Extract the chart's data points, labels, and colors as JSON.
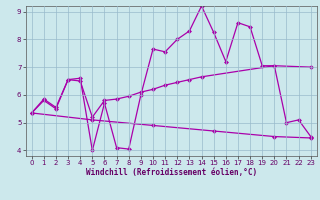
{
  "xlabel": "Windchill (Refroidissement éolien,°C)",
  "background_color": "#cce8ec",
  "line_color": "#aa00aa",
  "grid_color": "#99bbcc",
  "xlim": [
    -0.5,
    23.5
  ],
  "ylim": [
    3.8,
    9.2
  ],
  "yticks": [
    4,
    5,
    6,
    7,
    8,
    9
  ],
  "xticks": [
    0,
    1,
    2,
    3,
    4,
    5,
    6,
    7,
    8,
    9,
    10,
    11,
    12,
    13,
    14,
    15,
    16,
    17,
    18,
    19,
    20,
    21,
    22,
    23
  ],
  "line1_x": [
    0,
    1,
    2,
    3,
    4,
    5,
    6,
    7,
    8,
    9,
    10,
    11,
    12,
    13,
    14,
    15,
    16,
    17,
    18,
    19,
    20,
    21,
    22,
    23
  ],
  "line1_y": [
    5.35,
    5.8,
    5.5,
    6.55,
    6.6,
    4.0,
    5.7,
    4.1,
    4.05,
    6.0,
    7.65,
    7.55,
    8.0,
    8.3,
    9.2,
    8.25,
    7.2,
    8.6,
    8.45,
    7.05,
    7.05,
    5.0,
    5.1,
    4.5
  ],
  "line2_x": [
    0,
    1,
    2,
    3,
    4,
    5,
    6,
    7,
    8,
    9,
    10,
    11,
    12,
    13,
    14,
    20,
    23
  ],
  "line2_y": [
    5.35,
    5.85,
    5.55,
    6.55,
    6.5,
    5.2,
    5.8,
    5.85,
    5.95,
    6.1,
    6.2,
    6.35,
    6.45,
    6.55,
    6.65,
    7.05,
    7.0
  ],
  "line3_x": [
    0,
    5,
    10,
    15,
    20,
    23
  ],
  "line3_y": [
    5.35,
    5.1,
    4.9,
    4.7,
    4.5,
    4.45
  ],
  "marker": "D",
  "markersize": 2.5,
  "linewidth": 0.9
}
